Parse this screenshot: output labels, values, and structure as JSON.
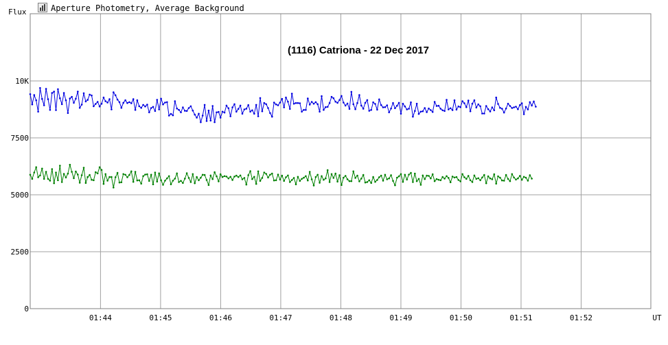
{
  "window": {
    "title": "Aperture Photometry, Average Background",
    "icon": "photometry-chart-icon"
  },
  "chart_data": {
    "type": "line",
    "title": "(1116) Catriona - 22 Dec 2017",
    "xlabel": "UT",
    "ylabel": "Flux",
    "x_ticks": [
      "01:44",
      "01:45",
      "01:46",
      "01:47",
      "01:48",
      "01:49",
      "01:50",
      "01:51",
      "01:52"
    ],
    "y_ticks": [
      {
        "value": 0,
        "label": "0"
      },
      {
        "value": 2500,
        "label": "2500"
      },
      {
        "value": 5000,
        "label": "5000"
      },
      {
        "value": 7500,
        "label": "7500"
      },
      {
        "value": 10000,
        "label": "10K"
      }
    ],
    "xlim_minutes": [
      42.83,
      53.16
    ],
    "ylim": [
      0,
      10000
    ],
    "grid": true,
    "series": [
      {
        "color": "#0000e0",
        "x_start_minute": 42.83,
        "x_step_minute": 0.033,
        "values": [
          9420,
          8970,
          9380,
          9150,
          8650,
          9690,
          9210,
          8930,
          9650,
          9200,
          8730,
          9470,
          9530,
          8720,
          9640,
          9240,
          8980,
          9470,
          9150,
          8590,
          9230,
          9300,
          9040,
          9220,
          9530,
          8820,
          8960,
          9460,
          9100,
          9170,
          9400,
          9360,
          8890,
          8990,
          9080,
          8880,
          9000,
          9270,
          9110,
          9050,
          9200,
          8750,
          9500,
          9370,
          9180,
          9070,
          8820,
          9040,
          9150,
          9030,
          9070,
          9020,
          9200,
          8730,
          9150,
          8890,
          8820,
          8950,
          8880,
          8960,
          8620,
          8810,
          8860,
          8680,
          9170,
          8750,
          9220,
          8970,
          9050,
          9070,
          8480,
          8550,
          8490,
          9110,
          8790,
          8730,
          8620,
          8840,
          8690,
          8680,
          8810,
          8890,
          8700,
          8520,
          8390,
          8560,
          8190,
          8480,
          8950,
          8240,
          8700,
          8260,
          8900,
          8190,
          8620,
          8640,
          8390,
          8650,
          8610,
          8920,
          8800,
          8450,
          8840,
          8980,
          8650,
          8770,
          8920,
          8560,
          8750,
          8780,
          8940,
          8650,
          8710,
          8560,
          8950,
          8450,
          9250,
          8670,
          9030,
          8980,
          8810,
          8590,
          8430,
          9050,
          8970,
          8930,
          9050,
          9210,
          8840,
          9270,
          9090,
          8770,
          9440,
          9000,
          9030,
          9030,
          9020,
          8650,
          8730,
          8730,
          9230,
          8960,
          9080,
          9000,
          9070,
          8980,
          8650,
          9330,
          8730,
          8850,
          8860,
          9030,
          9300,
          9240,
          9090,
          9040,
          9160,
          9340,
          9050,
          8920,
          9010,
          8770,
          9520,
          8980,
          8760,
          9030,
          9380,
          8920,
          8780,
          9040,
          9160,
          8690,
          8730,
          9060,
          8990,
          8740,
          9190,
          8940,
          8840,
          8850,
          8930,
          8620,
          8790,
          9030,
          8800,
          8910,
          9040,
          8560,
          9000,
          8880,
          8750,
          8780,
          9060,
          8430,
          8680,
          9000,
          8550,
          8650,
          8670,
          8810,
          8630,
          8790,
          8720,
          8640,
          9080,
          8900,
          8910,
          8780,
          8710,
          8680,
          9170,
          8750,
          8800,
          8720,
          9150,
          8740,
          8880,
          8850,
          9110,
          9020,
          8850,
          9140,
          8670,
          9000,
          9150,
          8830,
          8970,
          8890,
          8570,
          8570,
          8900,
          8760,
          8660,
          8840,
          8710,
          9270,
          8990,
          8820,
          8780,
          8610,
          8790,
          9000,
          8900,
          8810,
          8840,
          8870,
          8760,
          8940,
          9020,
          8540,
          8860,
          8750,
          9070,
          8920,
          9100,
          8870
        ]
      },
      {
        "color": "#008000",
        "x_start_minute": 42.83,
        "x_step_minute": 0.033,
        "values": [
          5880,
          5700,
          5980,
          6210,
          5770,
          5850,
          6150,
          5700,
          6010,
          5700,
          5620,
          6130,
          5510,
          5980,
          5640,
          6280,
          5560,
          5920,
          5760,
          5930,
          6320,
          6010,
          5730,
          6020,
          5890,
          5530,
          5860,
          6190,
          5520,
          5780,
          5870,
          5660,
          5640,
          5990,
          5940,
          6210,
          6090,
          5480,
          5910,
          5620,
          5780,
          5780,
          5320,
          5770,
          5960,
          5540,
          5550,
          5910,
          5880,
          5770,
          5870,
          6030,
          5570,
          6010,
          5630,
          5640,
          5490,
          5820,
          5890,
          5900,
          5610,
          5880,
          5460,
          5980,
          5580,
          5940,
          5640,
          5440,
          5620,
          5720,
          5820,
          5460,
          5620,
          5710,
          5940,
          5560,
          5610,
          5520,
          5710,
          5950,
          5740,
          5560,
          5910,
          5510,
          5780,
          5640,
          5750,
          5880,
          5870,
          5650,
          5430,
          5850,
          5690,
          5990,
          5810,
          5590,
          5900,
          5780,
          5820,
          5800,
          5720,
          5790,
          5650,
          5800,
          5840,
          5780,
          5850,
          5680,
          5740,
          5450,
          5860,
          6040,
          5690,
          5790,
          5480,
          6030,
          5610,
          5740,
          5980,
          5920,
          5760,
          5880,
          5930,
          5630,
          5640,
          5890,
          5670,
          5840,
          5610,
          5770,
          5850,
          5560,
          5650,
          5740,
          5460,
          5790,
          5610,
          5700,
          5750,
          5820,
          5630,
          6010,
          5680,
          5410,
          5780,
          5880,
          5530,
          5820,
          5660,
          5720,
          6080,
          5560,
          5910,
          5740,
          5930,
          5580,
          5860,
          5430,
          5750,
          5830,
          5680,
          5600,
          5600,
          6030,
          5740,
          5840,
          5590,
          5710,
          5870,
          5540,
          5560,
          5640,
          5520,
          5780,
          5570,
          5650,
          5770,
          5840,
          5620,
          5880,
          5680,
          5720,
          5860,
          5610,
          5420,
          5750,
          5810,
          5910,
          5570,
          5880,
          5670,
          5890,
          5960,
          5560,
          5930,
          5600,
          5700,
          5440,
          5850,
          5690,
          5840,
          5830,
          5720,
          5900,
          5600,
          5690,
          5660,
          5640,
          5780,
          5710,
          5820,
          5740,
          5550,
          5800,
          5760,
          5780,
          5650,
          5590,
          5910,
          5770,
          5700,
          5830,
          5640,
          5560,
          5850,
          5700,
          5730,
          5640,
          5760,
          5870,
          5510,
          5810,
          5720,
          5680,
          5900,
          5490,
          5810,
          5750,
          5630,
          5620,
          5870,
          5700,
          5600,
          5910,
          5760,
          5670,
          5720,
          5830,
          5660,
          5790,
          5750,
          5620,
          5860,
          5710
        ]
      }
    ]
  }
}
